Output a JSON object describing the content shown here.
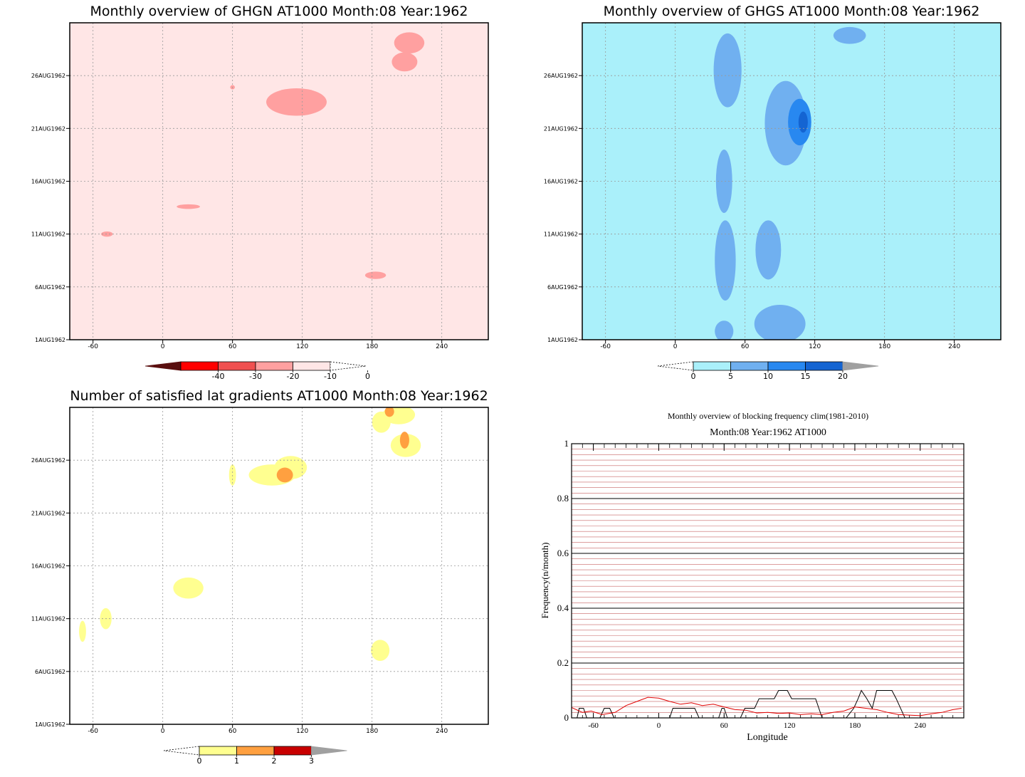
{
  "chart_data": [
    {
      "type": "heatmap",
      "title": "Monthly overview of GHGN AT1000 Month:08 Year:1962",
      "x_ticks": [
        "-60",
        "0",
        "60",
        "120",
        "180",
        "240"
      ],
      "x_tick_values": [
        -60,
        0,
        60,
        120,
        180,
        240
      ],
      "xlim": [
        -80,
        280
      ],
      "y_ticks": [
        "1AUG1962",
        "6AUG1962",
        "11AUG1962",
        "16AUG1962",
        "21AUG1962",
        "26AUG1962"
      ],
      "y_tick_values": [
        1,
        6,
        11,
        16,
        21,
        26
      ],
      "ylim": [
        1,
        31
      ],
      "grid": true,
      "colorbar": {
        "labels": [
          "-40",
          "-30",
          "-20",
          "-10",
          "0"
        ],
        "colors": [
          "#5a0f0f",
          "#ff0000",
          "#f05050",
          "#ffa0a0",
          "#ffe6e6"
        ],
        "arrow_left_color": "#5a0f0f",
        "arrow_right_color": "#ffffff"
      },
      "regions": [
        {
          "class": "-10",
          "x": 115,
          "y": 23.5,
          "rx": 26,
          "ry": 1.3,
          "color": "#ffa0a0"
        },
        {
          "class": "-10",
          "x": 212,
          "y": 29.1,
          "rx": 13,
          "ry": 1.0,
          "color": "#ffa0a0"
        },
        {
          "class": "-10",
          "x": 208,
          "y": 27.3,
          "rx": 11,
          "ry": 0.9,
          "color": "#ffa0a0"
        },
        {
          "class": "-10",
          "x": 60,
          "y": 24.9,
          "rx": 2,
          "ry": 0.2,
          "color": "#ffa0a0"
        },
        {
          "class": "-10",
          "x": 22,
          "y": 13.6,
          "rx": 10,
          "ry": 0.22,
          "color": "#ffa0a0"
        },
        {
          "class": "-10",
          "x": -48,
          "y": 11.0,
          "rx": 5,
          "ry": 0.25,
          "color": "#ffa0a0"
        },
        {
          "class": "-10",
          "x": 183,
          "y": 7.1,
          "rx": 9,
          "ry": 0.35,
          "color": "#ffa0a0"
        }
      ],
      "background_color": "#ffe6e6"
    },
    {
      "type": "heatmap",
      "title": "Monthly overview of GHGS AT1000 Month:08 Year:1962",
      "x_ticks": [
        "-60",
        "0",
        "60",
        "120",
        "180",
        "240"
      ],
      "x_tick_values": [
        -60,
        0,
        60,
        120,
        180,
        240
      ],
      "xlim": [
        -80,
        280
      ],
      "y_ticks": [
        "1AUG1962",
        "6AUG1962",
        "11AUG1962",
        "16AUG1962",
        "21AUG1962",
        "26AUG1962"
      ],
      "y_tick_values": [
        1,
        6,
        11,
        16,
        21,
        26
      ],
      "ylim": [
        1,
        31
      ],
      "grid": true,
      "colorbar": {
        "labels": [
          "0",
          "5",
          "10",
          "15",
          "20"
        ],
        "colors": [
          "#ffffff",
          "#aaf0fa",
          "#70b0f0",
          "#2888f0",
          "#1464d2"
        ],
        "arrow_left_color": "#ffffff",
        "arrow_right_color": "#a0a0a0"
      },
      "regions": [
        {
          "class": "5",
          "x": 45,
          "y": 26.5,
          "rx": 12,
          "ry": 3.5,
          "color": "#70b0f0"
        },
        {
          "class": "5",
          "x": 95,
          "y": 21.5,
          "rx": 18,
          "ry": 4.0,
          "color": "#70b0f0"
        },
        {
          "class": "5",
          "x": 42,
          "y": 16.0,
          "rx": 7,
          "ry": 3.0,
          "color": "#70b0f0"
        },
        {
          "class": "5",
          "x": 43,
          "y": 8.5,
          "rx": 9,
          "ry": 3.8,
          "color": "#70b0f0"
        },
        {
          "class": "5",
          "x": 80,
          "y": 9.5,
          "rx": 11,
          "ry": 2.8,
          "color": "#70b0f0"
        },
        {
          "class": "5",
          "x": 90,
          "y": 2.5,
          "rx": 22,
          "ry": 1.8,
          "color": "#70b0f0"
        },
        {
          "class": "5",
          "x": 42,
          "y": 1.8,
          "rx": 8,
          "ry": 1.0,
          "color": "#70b0f0"
        },
        {
          "class": "5",
          "x": 150,
          "y": 29.8,
          "rx": 14,
          "ry": 0.8,
          "color": "#70b0f0"
        },
        {
          "class": "10",
          "x": 107,
          "y": 21.6,
          "rx": 10,
          "ry": 2.2,
          "color": "#2888f0"
        },
        {
          "class": "15",
          "x": 110,
          "y": 21.6,
          "rx": 4,
          "ry": 1.0,
          "color": "#1464d2"
        }
      ],
      "background_color": "#aaf0fa"
    },
    {
      "type": "heatmap",
      "title": "Number of satisfied lat gradients AT1000 Month:08 Year:1962",
      "x_ticks": [
        "-60",
        "0",
        "60",
        "120",
        "180",
        "240"
      ],
      "x_tick_values": [
        -60,
        0,
        60,
        120,
        180,
        240
      ],
      "xlim": [
        -80,
        280
      ],
      "y_ticks": [
        "1AUG1962",
        "6AUG1962",
        "11AUG1962",
        "16AUG1962",
        "21AUG1962",
        "26AUG1962"
      ],
      "y_tick_values": [
        1,
        6,
        11,
        16,
        21,
        26
      ],
      "ylim": [
        1,
        31
      ],
      "grid": true,
      "colorbar": {
        "labels": [
          "0",
          "1",
          "2",
          "3"
        ],
        "colors": [
          "#ffff90",
          "#ffa040",
          "#c80000"
        ],
        "arrow_left_color": "#ffffff",
        "arrow_right_color": "#a0a0a0"
      },
      "regions": [
        {
          "class": "1",
          "x": 110,
          "y": 25.3,
          "rx": 14,
          "ry": 1.1,
          "color": "#ffff90"
        },
        {
          "class": "1",
          "x": 94,
          "y": 24.6,
          "rx": 20,
          "ry": 1.0,
          "color": "#ffff90"
        },
        {
          "class": "1",
          "x": 60,
          "y": 24.6,
          "rx": 3,
          "ry": 1.0,
          "color": "#ffff90"
        },
        {
          "class": "1",
          "x": 203,
          "y": 30.3,
          "rx": 14,
          "ry": 0.9,
          "color": "#ffff90"
        },
        {
          "class": "1",
          "x": 188,
          "y": 29.6,
          "rx": 8,
          "ry": 1.0,
          "color": "#ffff90"
        },
        {
          "class": "1",
          "x": 209,
          "y": 27.4,
          "rx": 13,
          "ry": 1.1,
          "color": "#ffff90"
        },
        {
          "class": "1",
          "x": 22,
          "y": 13.9,
          "rx": 13,
          "ry": 1.0,
          "color": "#ffff90"
        },
        {
          "class": "1",
          "x": -49,
          "y": 11.0,
          "rx": 5,
          "ry": 1.0,
          "color": "#ffff90"
        },
        {
          "class": "1",
          "x": -69,
          "y": 9.8,
          "rx": 3,
          "ry": 1.0,
          "color": "#ffff90"
        },
        {
          "class": "1",
          "x": 187,
          "y": 8.0,
          "rx": 8,
          "ry": 1.0,
          "color": "#ffff90"
        },
        {
          "class": "2",
          "x": 105,
          "y": 24.6,
          "rx": 7,
          "ry": 0.7,
          "color": "#ffa040"
        },
        {
          "class": "2",
          "x": 195,
          "y": 30.6,
          "rx": 4,
          "ry": 0.5,
          "color": "#ffa040"
        },
        {
          "class": "2",
          "x": 208,
          "y": 27.9,
          "rx": 4,
          "ry": 0.8,
          "color": "#ffa040"
        }
      ],
      "background_color": "#ffffff"
    },
    {
      "type": "line",
      "title": "Monthly overview of blocking frequency clim(1981-2010)",
      "subtitle": "Month:08 Year:1962  AT1000",
      "xlabel": "Longitude",
      "ylabel": "Frequency(n/month)",
      "xlim": [
        -80,
        280
      ],
      "ylim": [
        0,
        1
      ],
      "x_ticks": [
        "-60",
        "0",
        "60",
        "120",
        "180",
        "240"
      ],
      "x_tick_values": [
        -60,
        0,
        60,
        120,
        180,
        240
      ],
      "y_ticks": [
        "0",
        "0.2",
        "0.4",
        "0.6",
        "0.8",
        "1"
      ],
      "y_tick_values": [
        0,
        0.2,
        0.4,
        0.6,
        0.8,
        1
      ],
      "grid": true,
      "series": [
        {
          "color": "#000000",
          "x": [
            -80,
            -75,
            -73,
            -69,
            -66,
            -62,
            -58,
            -54,
            -50,
            -45,
            -41,
            -37,
            -30,
            10,
            13,
            33,
            37,
            55,
            58,
            60,
            63,
            75,
            79,
            88,
            92,
            106,
            110,
            118,
            122,
            144,
            150,
            167,
            172,
            179,
            183,
            186,
            191,
            196,
            200,
            214,
            218,
            226,
            230,
            280
          ],
          "y": [
            0,
            0,
            0.035,
            0.035,
            0,
            0,
            0,
            0,
            0.035,
            0.035,
            0,
            0,
            0,
            0,
            0.035,
            0.035,
            0,
            0,
            0.035,
            0.035,
            0,
            0,
            0.035,
            0.035,
            0.07,
            0.07,
            0.1,
            0.1,
            0.07,
            0.07,
            0,
            0,
            0,
            0.035,
            0.07,
            0.1,
            0.07,
            0.035,
            0.1,
            0.1,
            0.07,
            0,
            0,
            0
          ]
        },
        {
          "color": "#e00000",
          "x": [
            -80,
            -70,
            -62,
            -52,
            -40,
            -30,
            -20,
            -10,
            0,
            10,
            20,
            30,
            40,
            50,
            60,
            70,
            80,
            90,
            100,
            110,
            120,
            130,
            140,
            150,
            160,
            170,
            180,
            190,
            200,
            210,
            220,
            230,
            240,
            250,
            260,
            270,
            278
          ],
          "y": [
            0.038,
            0.02,
            0.025,
            0.012,
            0.02,
            0.045,
            0.06,
            0.075,
            0.072,
            0.06,
            0.05,
            0.055,
            0.045,
            0.05,
            0.04,
            0.03,
            0.028,
            0.018,
            0.02,
            0.016,
            0.018,
            0.012,
            0.015,
            0.012,
            0.02,
            0.025,
            0.04,
            0.035,
            0.03,
            0.02,
            0.012,
            0.01,
            0.008,
            0.015,
            0.02,
            0.03,
            0.035
          ]
        }
      ]
    }
  ]
}
